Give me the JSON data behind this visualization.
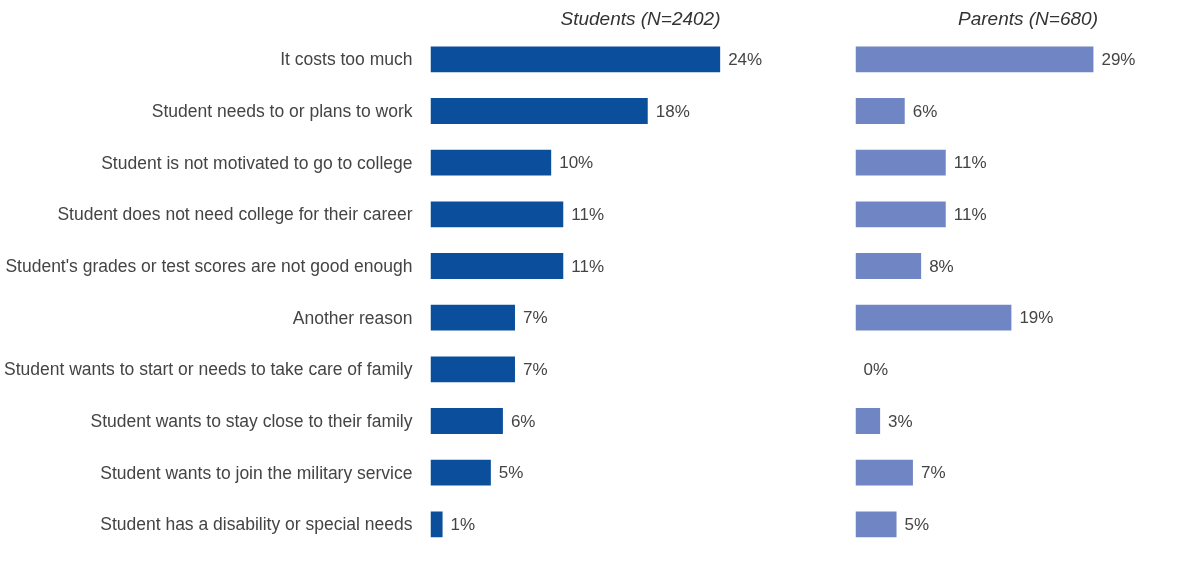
{
  "chart_data": [
    {
      "type": "bar",
      "orientation": "horizontal",
      "title": "Students (N=2402)",
      "tick_labels": "y",
      "categories": [
        "It costs too much",
        "Student needs to or plans to work",
        "Student is not motivated to go to college",
        "Student does not need college for their career",
        "Student's grades or test scores are not good enough",
        "Another reason",
        "Student wants to start or needs to take care of family",
        "Student wants to stay close to their family",
        "Student wants to join the military service",
        "Student has a disability or special needs"
      ],
      "series": [
        {
          "color": "#0b4f9c",
          "values": [
            24,
            18,
            10,
            11,
            11,
            7,
            7,
            6,
            5,
            1
          ],
          "value_labels": [
            "24%",
            "18%",
            "10%",
            "11%",
            "11%",
            "7%",
            "7%",
            "6%",
            "5%",
            "1%"
          ]
        }
      ]
    },
    {
      "type": "bar",
      "orientation": "horizontal",
      "title": "Parents (N=680)",
      "tick_labels": false,
      "series": [
        {
          "color": "#7086c4",
          "values": [
            29,
            6,
            11,
            11,
            8,
            19,
            0,
            3,
            7,
            5
          ],
          "value_labels": [
            "29%",
            "6%",
            "11%",
            "11%",
            "8%",
            "19%",
            "0%",
            "3%",
            "7%",
            "5%"
          ]
        }
      ]
    }
  ]
}
